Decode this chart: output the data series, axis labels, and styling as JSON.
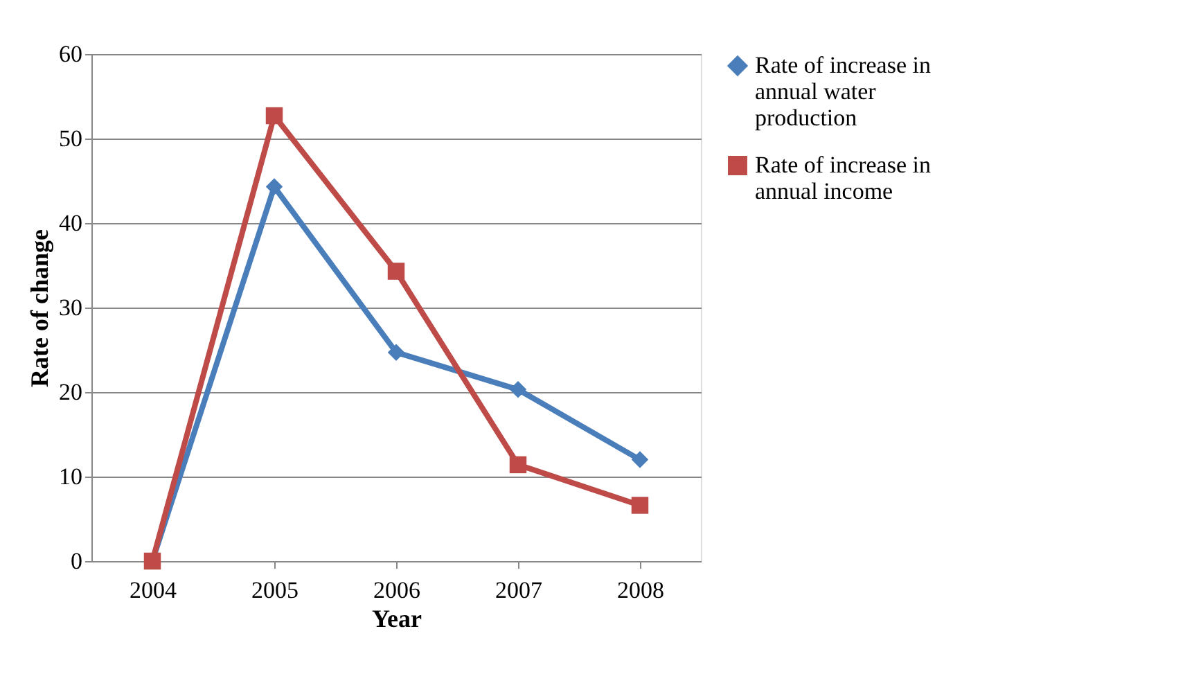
{
  "chart_data": {
    "type": "line",
    "xlabel": "Year",
    "ylabel": "Rate of change",
    "categories": [
      "2004",
      "2005",
      "2006",
      "2007",
      "2008"
    ],
    "series": [
      {
        "name": "Rate of increase in annual water production",
        "color": "#4a7ebb",
        "marker": "diamond",
        "values": [
          0,
          44.3,
          24.7,
          20.3,
          12.0
        ]
      },
      {
        "name": "Rate of increase in annual income",
        "color": "#be4b48",
        "marker": "square",
        "values": [
          0,
          52.7,
          34.3,
          11.4,
          6.6
        ]
      }
    ],
    "ylim": [
      0,
      60
    ],
    "yticks": [
      0,
      10,
      20,
      30,
      40,
      50,
      60
    ],
    "grid": "y",
    "legend": "right"
  }
}
